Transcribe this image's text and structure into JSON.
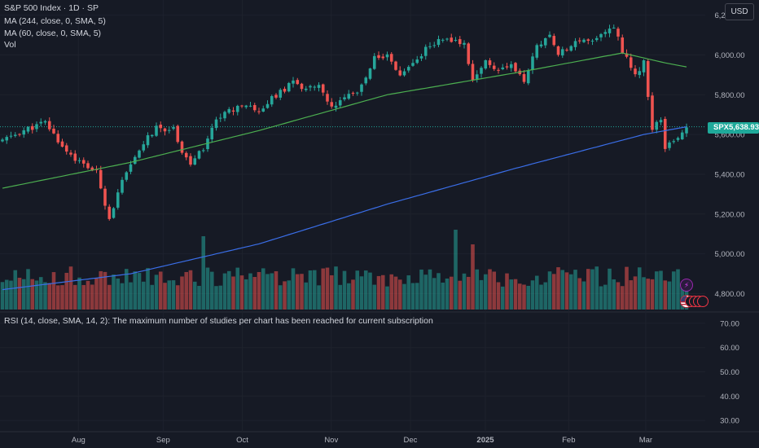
{
  "legend": {
    "title": "S&P 500 Index · 1D · SP",
    "ma1": "MA (244, close, 0, SMA, 5)",
    "ma2": "MA (60, close, 0, SMA, 5)",
    "vol": "Vol"
  },
  "rsi_note": "RSI (14, close, SMA, 14, 2): The maximum number of studies per chart has been reached for current subscription",
  "currency_button": "USD",
  "price_tag": {
    "symbol": "SPX",
    "value": "5,638.93"
  },
  "event_icons": {
    "flash": "flash-icon",
    "flag": "us-flag-icon"
  },
  "colors": {
    "background": "#161a25",
    "up": "#26a69a",
    "down": "#ef5350",
    "ma244": "#3a6ee8",
    "ma60": "#4caf50",
    "last_price": "#1fa99a"
  },
  "chart_data": {
    "type": "candlestick",
    "x_ticks": [
      "Aug",
      "Sep",
      "Oct",
      "Nov",
      "Dec",
      "2025",
      "Feb",
      "Mar"
    ],
    "price_axis": {
      "ticks": [
        "6,200.00",
        "6,000.00",
        "5,800.00",
        "5,600.00",
        "5,400.00",
        "5,200.00",
        "5,000.00",
        "4,800.00"
      ],
      "ylim": [
        4720,
        6260
      ]
    },
    "rsi_axis": {
      "ticks": [
        "70.00",
        "60.00",
        "50.00",
        "40.00",
        "30.00"
      ],
      "ylim": [
        26,
        73
      ]
    },
    "last_price": 5638.93,
    "close_path": [
      [
        0,
        5570
      ],
      [
        5,
        5620
      ],
      [
        10,
        5660
      ],
      [
        14,
        5540
      ],
      [
        18,
        5460
      ],
      [
        22,
        5410
      ],
      [
        25,
        5180
      ],
      [
        28,
        5360
      ],
      [
        33,
        5560
      ],
      [
        36,
        5630
      ],
      [
        40,
        5630
      ],
      [
        42,
        5520
      ],
      [
        44,
        5450
      ],
      [
        47,
        5530
      ],
      [
        50,
        5680
      ],
      [
        53,
        5720
      ],
      [
        57,
        5760
      ],
      [
        60,
        5720
      ],
      [
        64,
        5800
      ],
      [
        68,
        5860
      ],
      [
        71,
        5830
      ],
      [
        74,
        5840
      ],
      [
        77,
        5730
      ],
      [
        80,
        5780
      ],
      [
        83,
        5810
      ],
      [
        87,
        5980
      ],
      [
        90,
        6000
      ],
      [
        93,
        5900
      ],
      [
        96,
        5960
      ],
      [
        100,
        6050
      ],
      [
        103,
        6080
      ],
      [
        106,
        6070
      ],
      [
        108,
        6050
      ],
      [
        110,
        5880
      ],
      [
        113,
        5970
      ],
      [
        116,
        5920
      ],
      [
        119,
        5950
      ],
      [
        122,
        5860
      ],
      [
        125,
        6040
      ],
      [
        128,
        6110
      ],
      [
        130,
        6000
      ],
      [
        133,
        6050
      ],
      [
        137,
        6070
      ],
      [
        140,
        6100
      ],
      [
        143,
        6140
      ],
      [
        145,
        6020
      ],
      [
        148,
        5900
      ],
      [
        150,
        5960
      ],
      [
        152,
        5630
      ],
      [
        154,
        5680
      ],
      [
        155,
        5530
      ],
      [
        158,
        5580
      ],
      [
        160,
        5639
      ]
    ],
    "ma244_path": [
      [
        0,
        4820
      ],
      [
        30,
        4900
      ],
      [
        60,
        5050
      ],
      [
        90,
        5250
      ],
      [
        120,
        5430
      ],
      [
        150,
        5600
      ],
      [
        160,
        5639
      ]
    ],
    "ma60_path": [
      [
        0,
        5330
      ],
      [
        30,
        5460
      ],
      [
        60,
        5620
      ],
      [
        90,
        5800
      ],
      [
        120,
        5910
      ],
      [
        145,
        6010
      ],
      [
        155,
        5960
      ],
      [
        160,
        5940
      ]
    ],
    "volume_peaks": [
      {
        "x": 47,
        "level": 0.9
      },
      {
        "x": 106,
        "level": 0.98
      },
      {
        "x": 110,
        "level": 0.8
      }
    ]
  }
}
